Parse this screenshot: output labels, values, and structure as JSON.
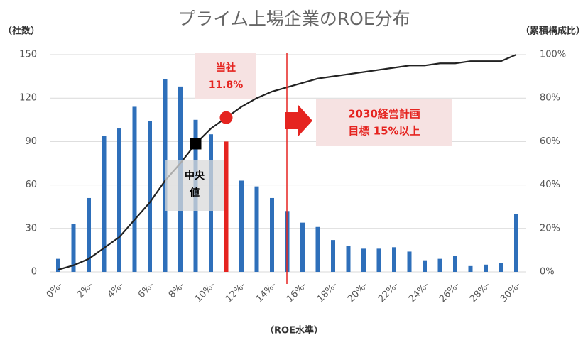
{
  "chart_data": {
    "type": "bar",
    "title": "プライム上場企業のROE分布",
    "y_label": "（社数）",
    "y2_label": "（累積構成比）",
    "x_label": "（ROE水準）",
    "categories": [
      "0%-",
      null,
      "2%-",
      null,
      "4%-",
      null,
      "6%-",
      null,
      "8%-",
      null,
      "10%-",
      null,
      "12%-",
      null,
      "14%-",
      null,
      "16%-",
      null,
      "18%-",
      null,
      "20%-",
      null,
      "22%-",
      null,
      "24%-",
      null,
      "26%-",
      null,
      "28%-",
      null,
      "30%-"
    ],
    "series": [
      {
        "type": "bar",
        "color": "#2e6fba",
        "values": [
          9,
          33,
          51,
          94,
          99,
          114,
          104,
          133,
          128,
          105,
          95,
          90,
          63,
          59,
          51,
          42,
          34,
          31,
          22,
          18,
          16,
          16,
          17,
          14,
          8,
          9,
          11,
          4,
          5,
          6,
          40
        ]
      },
      {
        "type": "line",
        "axis": "y2",
        "color": "#222222",
        "values": [
          1,
          3,
          6,
          11,
          16,
          24,
          32,
          42,
          50,
          59,
          66,
          71,
          76,
          80,
          83,
          85,
          87,
          89,
          90,
          91,
          92,
          93,
          94,
          95,
          95,
          96,
          96,
          97,
          97,
          97,
          100
        ]
      }
    ],
    "highlight": {
      "category_index": 11,
      "color": "#e52420"
    },
    "median_index": 9,
    "ylim": [
      0,
      150
    ],
    "yticks": [
      0,
      30,
      60,
      90,
      120,
      150
    ],
    "y2lim": [
      0,
      100
    ],
    "y2ticks": [
      {
        "value": 0,
        "label": "0%"
      },
      {
        "value": 20,
        "label": "20%"
      },
      {
        "value": 40,
        "label": "40%"
      },
      {
        "value": 60,
        "label": "60%"
      },
      {
        "value": 80,
        "label": "80%"
      },
      {
        "value": 100,
        "label": "100%"
      }
    ],
    "grid": true,
    "annotations": {
      "company": [
        "当社",
        "11.8%"
      ],
      "target": [
        "2030経営計画",
        "目標 15%以上"
      ],
      "median": [
        "中央",
        "値"
      ]
    }
  }
}
